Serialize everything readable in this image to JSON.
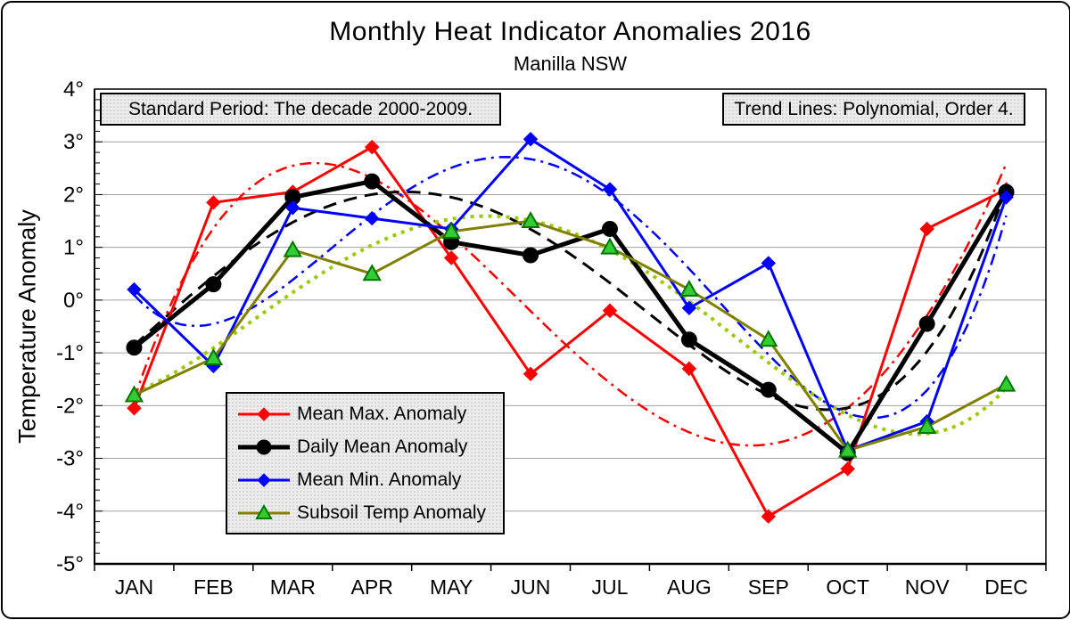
{
  "title": "Monthly Heat Indicator Anomalies 2016",
  "subtitle": "Manilla NSW",
  "annotations": {
    "standard_period": "Standard Period: The decade 2000-2009.",
    "trend_lines": "Trend Lines: Polynomial, Order 4."
  },
  "chart_data": {
    "type": "line",
    "title": "Monthly Heat Indicator Anomalies 2016",
    "subtitle": "Manilla NSW",
    "ylabel": "Temperature Anomaly",
    "ylim": [
      -5,
      4
    ],
    "grid": true,
    "legend_position": "inside-lower-left",
    "y_tick_labels": [
      "4°",
      "3°",
      "2°",
      "1°",
      "0°",
      "-1°",
      "-2°",
      "-3°",
      "-4°",
      "-5°"
    ],
    "categories": [
      "JAN",
      "FEB",
      "MAR",
      "APR",
      "MAY",
      "JUN",
      "JUL",
      "AUG",
      "SEP",
      "OCT",
      "NOV",
      "DEC"
    ],
    "series": [
      {
        "name": "Mean Max. Anomaly",
        "color": "#ff0000",
        "marker": "diamond",
        "marker_fill": "#ff0000",
        "marker_stroke": "#ff0000",
        "line_width": 3,
        "values": [
          -2.05,
          1.85,
          2.05,
          2.9,
          0.8,
          -1.4,
          -0.2,
          -1.3,
          -4.1,
          -3.2,
          1.35,
          2.1
        ],
        "trend": {
          "type": "polynomial",
          "order": 4,
          "color": "#ff0000",
          "dash": "dash-dot",
          "width": 2.5
        }
      },
      {
        "name": "Daily Mean Anomaly",
        "color": "#000000",
        "marker": "circle",
        "marker_fill": "#000000",
        "marker_stroke": "#000000",
        "line_width": 5,
        "values": [
          -0.9,
          0.3,
          1.95,
          2.25,
          1.1,
          0.85,
          1.35,
          -0.75,
          -1.7,
          -2.9,
          -0.45,
          2.05
        ],
        "trend": {
          "type": "polynomial",
          "order": 4,
          "color": "#000000",
          "dash": "dash",
          "width": 3
        }
      },
      {
        "name": "Mean Min. Anomaly",
        "color": "#0000ff",
        "marker": "diamond",
        "marker_fill": "#0000ff",
        "marker_stroke": "#0000ff",
        "line_width": 3,
        "values": [
          0.2,
          -1.25,
          1.75,
          1.55,
          1.35,
          3.05,
          2.1,
          -0.15,
          0.7,
          -2.85,
          -2.3,
          1.95
        ],
        "trend": {
          "type": "polynomial",
          "order": 4,
          "color": "#0000ff",
          "dash": "dash-dot",
          "width": 2.5
        }
      },
      {
        "name": "Subsoil Temp Anomaly",
        "color": "#808000",
        "marker": "triangle",
        "marker_fill": "#33cc33",
        "marker_stroke": "#007700",
        "line_width": 3,
        "values": [
          -1.8,
          -1.1,
          0.95,
          0.5,
          1.3,
          1.5,
          1.0,
          0.2,
          -0.75,
          -2.85,
          -2.4,
          -1.6
        ],
        "trend": {
          "type": "polynomial",
          "order": 4,
          "color": "#99cc00",
          "dash": "dot",
          "width": 4
        }
      }
    ],
    "colors": {
      "grid": "#a0a0a0",
      "axis": "#000000",
      "plot_background": "#ffffff",
      "box_background": "#ececec"
    }
  }
}
